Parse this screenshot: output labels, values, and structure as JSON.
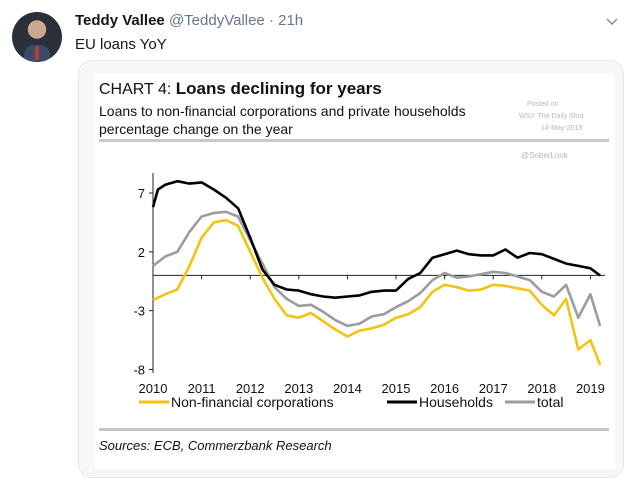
{
  "tweet": {
    "display_name": "Teddy Vallee",
    "handle": "@TeddyVallee",
    "separator": "·",
    "time": "21h",
    "text": "EU loans YoY"
  },
  "icons": {
    "avatar": "user-avatar",
    "caret": "chevron-down-icon"
  },
  "chart_data": {
    "type": "line",
    "title_prefix": "CHART 4: ",
    "title": "Loans declining for years",
    "subtitle_line1": "Loans to non-financial corporations and private households",
    "subtitle_line2": "percentage change on the year",
    "sources": "Sources: ECB, Commerzbank Research",
    "watermarks": [
      "Posted on",
      "WSJ: The Daily Shot",
      "14-May-2019",
      "@SoberLook"
    ],
    "x_ticks": [
      "2010",
      "2011",
      "2012",
      "2013",
      "2014",
      "2015",
      "2016",
      "2017",
      "2018",
      "2019"
    ],
    "y_ticks": [
      "7",
      "2",
      "-3",
      "-8"
    ],
    "xlim": [
      2010,
      2019.3
    ],
    "ylim": [
      -8.3,
      8.7
    ],
    "grid": false,
    "legend_position": "bottom",
    "series": [
      {
        "name": "Non-financial corporations",
        "color": "#f2c311",
        "x": [
          2010.0,
          2010.25,
          2010.5,
          2010.75,
          2011.0,
          2011.25,
          2011.5,
          2011.75,
          2012.0,
          2012.25,
          2012.5,
          2012.75,
          2013.0,
          2013.25,
          2013.5,
          2013.75,
          2014.0,
          2014.25,
          2014.5,
          2014.75,
          2015.0,
          2015.25,
          2015.5,
          2015.75,
          2016.0,
          2016.25,
          2016.5,
          2016.75,
          2017.0,
          2017.25,
          2017.5,
          2017.75,
          2018.0,
          2018.25,
          2018.5,
          2018.75,
          2019.0,
          2019.2
        ],
        "values": [
          -2.1,
          -1.6,
          -1.2,
          0.8,
          3.2,
          4.5,
          4.7,
          4.2,
          2.0,
          -0.2,
          -2.0,
          -3.4,
          -3.6,
          -3.2,
          -3.9,
          -4.6,
          -5.2,
          -4.7,
          -4.5,
          -4.2,
          -3.6,
          -3.3,
          -2.7,
          -1.4,
          -0.8,
          -1.0,
          -1.3,
          -1.2,
          -0.8,
          -0.9,
          -1.1,
          -1.3,
          -2.5,
          -3.4,
          -2.0,
          -6.3,
          -5.5,
          -7.6
        ]
      },
      {
        "name": "Households",
        "color": "#000000",
        "x": [
          2010.0,
          2010.1,
          2010.25,
          2010.5,
          2010.75,
          2011.0,
          2011.25,
          2011.5,
          2011.75,
          2012.0,
          2012.25,
          2012.5,
          2012.75,
          2013.0,
          2013.25,
          2013.5,
          2013.75,
          2014.0,
          2014.25,
          2014.5,
          2014.75,
          2015.0,
          2015.25,
          2015.5,
          2015.75,
          2016.0,
          2016.25,
          2016.5,
          2016.75,
          2017.0,
          2017.25,
          2017.5,
          2017.75,
          2018.0,
          2018.25,
          2018.5,
          2018.75,
          2019.0,
          2019.2
        ],
        "values": [
          5.8,
          7.3,
          7.7,
          8.0,
          7.8,
          7.9,
          7.3,
          6.6,
          5.7,
          3.2,
          0.5,
          -0.8,
          -1.2,
          -1.3,
          -1.6,
          -1.8,
          -1.9,
          -1.8,
          -1.7,
          -1.4,
          -1.3,
          -1.3,
          -0.3,
          0.2,
          1.5,
          1.8,
          2.1,
          1.8,
          1.7,
          1.7,
          2.2,
          1.5,
          1.9,
          1.8,
          1.4,
          1.0,
          0.8,
          0.6,
          0.0
        ]
      },
      {
        "name": "total",
        "color": "#9c9c9c",
        "x": [
          2010.0,
          2010.25,
          2010.5,
          2010.75,
          2011.0,
          2011.25,
          2011.5,
          2011.75,
          2012.0,
          2012.25,
          2012.5,
          2012.75,
          2013.0,
          2013.25,
          2013.5,
          2013.75,
          2014.0,
          2014.25,
          2014.5,
          2014.75,
          2015.0,
          2015.25,
          2015.5,
          2015.75,
          2016.0,
          2016.25,
          2016.5,
          2016.75,
          2017.0,
          2017.25,
          2017.5,
          2017.75,
          2018.0,
          2018.25,
          2018.5,
          2018.75,
          2019.0,
          2019.2
        ],
        "values": [
          0.8,
          1.6,
          2.0,
          3.7,
          5.0,
          5.3,
          5.4,
          5.0,
          3.0,
          1.0,
          -1.0,
          -2.0,
          -2.6,
          -2.5,
          -3.1,
          -3.8,
          -4.3,
          -4.1,
          -3.5,
          -3.3,
          -2.7,
          -2.2,
          -1.5,
          -0.4,
          0.2,
          -0.2,
          -0.1,
          0.1,
          0.3,
          0.2,
          -0.1,
          -0.4,
          -1.4,
          -1.8,
          -0.8,
          -3.6,
          -1.6,
          -4.3
        ]
      }
    ]
  }
}
